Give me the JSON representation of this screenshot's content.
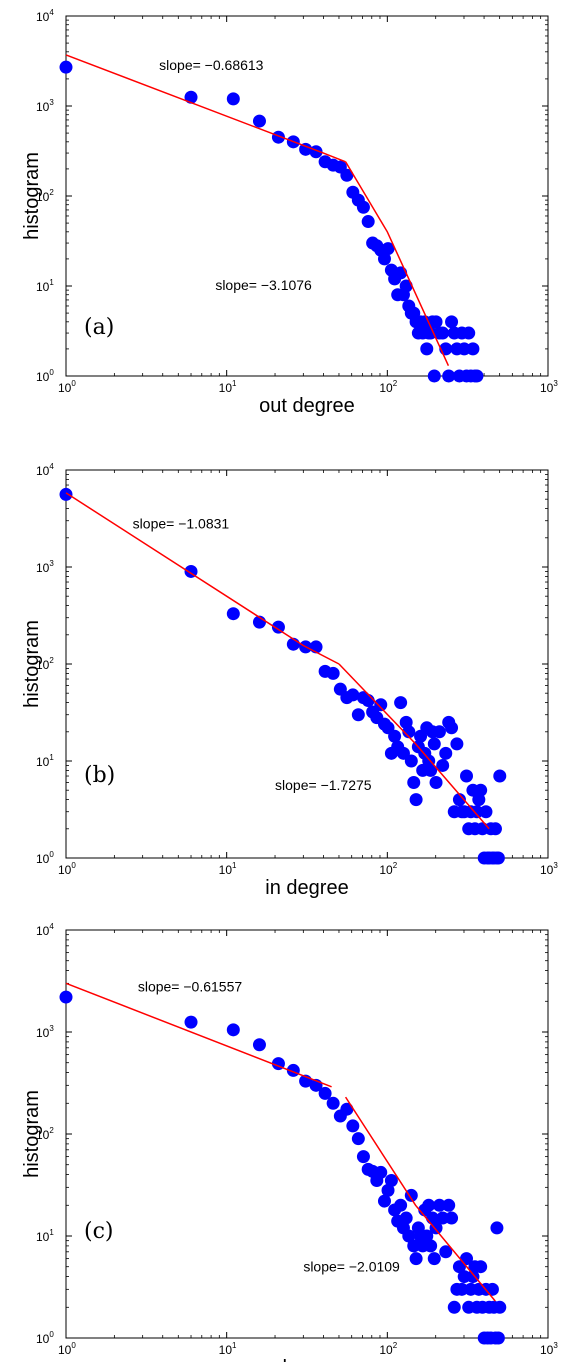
{
  "chart_data": [
    {
      "type": "scatter",
      "panel_label": "(a)",
      "xlabel": "out degree",
      "ylabel": "histogram",
      "xscale": "log",
      "yscale": "log",
      "xlim": [
        1,
        1000
      ],
      "ylim": [
        1,
        10000
      ],
      "xticks": [
        1,
        10,
        100,
        1000
      ],
      "yticks": [
        1,
        10,
        100,
        1000,
        10000
      ],
      "tick_base": "10",
      "xtick_exponents": [
        "0",
        "1",
        "2",
        "3"
      ],
      "ytick_exponents": [
        "0",
        "1",
        "2",
        "3",
        "4"
      ],
      "grid": false,
      "colors": {
        "points": "#0000ff",
        "fit": "#ff0000"
      },
      "annotations": [
        {
          "text": "slope= −0.68613",
          "x": 3.8,
          "y": 2500
        },
        {
          "text": "slope= −3.1076",
          "x": 8.5,
          "y": 9
        }
      ],
      "fit_lines": [
        {
          "x": [
            1,
            40,
            55
          ],
          "y": [
            3700,
            300,
            240
          ]
        },
        {
          "x": [
            55,
            100,
            240
          ],
          "y": [
            240,
            40,
            1.3
          ]
        }
      ],
      "series": [
        {
          "x": [
            1,
            6,
            11,
            16,
            21,
            26,
            31,
            36,
            41,
            46,
            51,
            56,
            61,
            66,
            71,
            76,
            81,
            86,
            91,
            96,
            101,
            106,
            111,
            116,
            121,
            126,
            131,
            136,
            141,
            146,
            151,
            156,
            161,
            166,
            171,
            176,
            181,
            186,
            191,
            196,
            201,
            211,
            221,
            231,
            241,
            251,
            261,
            271,
            281,
            291,
            301,
            311,
            321,
            331,
            341,
            351,
            361
          ],
          "y": [
            2700,
            1250,
            1200,
            680,
            450,
            400,
            330,
            310,
            240,
            220,
            210,
            170,
            110,
            90,
            75,
            52,
            30,
            28,
            25,
            20,
            26,
            15,
            12,
            8,
            14,
            8,
            10,
            6,
            5,
            5,
            4,
            3,
            4,
            3,
            4,
            2,
            3,
            3,
            4,
            1,
            4,
            3,
            3,
            2,
            1,
            4,
            3,
            2,
            1,
            3,
            2,
            1,
            3,
            1,
            2,
            1,
            1
          ]
        }
      ]
    },
    {
      "type": "scatter",
      "panel_label": "(b)",
      "xlabel": "in degree",
      "ylabel": "histogram",
      "xscale": "log",
      "yscale": "log",
      "xlim": [
        1,
        1000
      ],
      "ylim": [
        1,
        10000
      ],
      "xticks": [
        1,
        10,
        100,
        1000
      ],
      "yticks": [
        1,
        10,
        100,
        1000,
        10000
      ],
      "tick_base": "10",
      "xtick_exponents": [
        "0",
        "1",
        "2",
        "3"
      ],
      "ytick_exponents": [
        "0",
        "1",
        "2",
        "3",
        "4"
      ],
      "grid": false,
      "colors": {
        "points": "#0000ff",
        "fit": "#ff0000"
      },
      "annotations": [
        {
          "text": "slope= −1.0831",
          "x": 2.6,
          "y": 2500
        },
        {
          "text": "slope= −1.7275",
          "x": 20,
          "y": 5
        }
      ],
      "fit_lines": [
        {
          "x": [
            1,
            30,
            50
          ],
          "y": [
            5800,
            155,
            100
          ]
        },
        {
          "x": [
            50,
            150,
            430
          ],
          "y": [
            100,
            15,
            2
          ]
        }
      ],
      "series": [
        {
          "x": [
            1,
            6,
            11,
            16,
            21,
            26,
            31,
            36,
            41,
            46,
            51,
            56,
            61,
            66,
            71,
            76,
            81,
            86,
            91,
            96,
            101,
            106,
            111,
            116,
            121,
            126,
            131,
            136,
            141,
            146,
            151,
            156,
            161,
            166,
            171,
            176,
            181,
            186,
            191,
            196,
            201,
            211,
            221,
            231,
            241,
            251,
            261,
            271,
            281,
            291,
            301,
            311,
            321,
            331,
            341,
            351,
            361,
            371,
            381,
            391,
            401,
            411,
            421,
            431,
            441,
            451,
            461,
            471,
            481,
            491,
            501
          ],
          "y": [
            5600,
            900,
            330,
            270,
            240,
            160,
            150,
            150,
            84,
            80,
            55,
            45,
            48,
            30,
            45,
            42,
            32,
            28,
            38,
            24,
            22,
            12,
            18,
            14,
            40,
            12,
            25,
            20,
            10,
            6,
            4,
            14,
            18,
            8,
            12,
            22,
            10,
            8,
            20,
            15,
            6,
            20,
            9,
            12,
            25,
            22,
            3,
            15,
            4,
            3,
            3,
            7,
            2,
            3,
            5,
            2,
            3,
            4,
            5,
            2,
            1,
            3,
            1,
            1,
            2,
            1,
            1,
            2,
            1,
            1,
            7
          ]
        }
      ]
    },
    {
      "type": "scatter",
      "panel_label": "(c)",
      "xlabel": "degree",
      "ylabel": "histogram",
      "xscale": "log",
      "yscale": "log",
      "xlim": [
        1,
        1000
      ],
      "ylim": [
        1,
        10000
      ],
      "xticks": [
        1,
        10,
        100,
        1000
      ],
      "yticks": [
        1,
        10,
        100,
        1000,
        10000
      ],
      "tick_base": "10",
      "xtick_exponents": [
        "0",
        "1",
        "2",
        "3"
      ],
      "ytick_exponents": [
        "0",
        "1",
        "2",
        "3",
        "4"
      ],
      "grid": false,
      "colors": {
        "points": "#0000ff",
        "fit": "#ff0000"
      },
      "annotations": [
        {
          "text": "slope= −0.61557",
          "x": 2.8,
          "y": 2500
        },
        {
          "text": "slope= −2.0109",
          "x": 30,
          "y": 4.5
        }
      ],
      "fit_lines": [
        {
          "x": [
            1,
            45
          ],
          "y": [
            3000,
            290
          ]
        },
        {
          "x": [
            55,
            150,
            470
          ],
          "y": [
            230,
            20,
            2.3
          ]
        }
      ],
      "series": [
        {
          "x": [
            1,
            6,
            11,
            16,
            21,
            26,
            31,
            36,
            41,
            46,
            51,
            56,
            61,
            66,
            71,
            76,
            81,
            86,
            91,
            96,
            101,
            106,
            111,
            116,
            121,
            126,
            131,
            136,
            141,
            146,
            151,
            156,
            161,
            166,
            171,
            176,
            181,
            186,
            191,
            196,
            201,
            211,
            221,
            231,
            241,
            251,
            261,
            271,
            281,
            291,
            301,
            311,
            321,
            331,
            341,
            351,
            361,
            371,
            381,
            391,
            401,
            411,
            421,
            431,
            441,
            451,
            461,
            471,
            481,
            491,
            501
          ],
          "y": [
            2200,
            1250,
            1050,
            750,
            490,
            420,
            330,
            300,
            250,
            200,
            150,
            175,
            120,
            90,
            60,
            45,
            43,
            35,
            42,
            22,
            28,
            35,
            18,
            14,
            20,
            12,
            15,
            10,
            25,
            8,
            6,
            12,
            10,
            8,
            18,
            10,
            20,
            8,
            15,
            6,
            12,
            20,
            15,
            7,
            20,
            15,
            2,
            3,
            5,
            3,
            4,
            6,
            2,
            3,
            4,
            5,
            2,
            3,
            5,
            2,
            1,
            3,
            1,
            2,
            1,
            3,
            2,
            1,
            12,
            1,
            2
          ]
        }
      ]
    }
  ]
}
